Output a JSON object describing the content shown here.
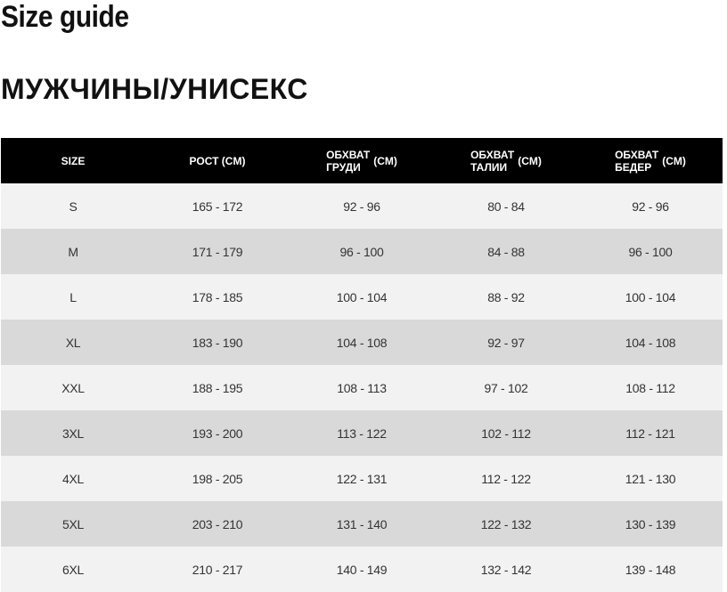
{
  "title": "Size guide",
  "section": "МУЖЧИНЫ/УНИСЕКС",
  "table": {
    "headers": [
      {
        "main": "SIZE",
        "unit": ""
      },
      {
        "main": "РОСТ",
        "unit": "(CM)"
      },
      {
        "line1": "ОБХВАТ",
        "line2": "ГРУДИ",
        "unit": "(CM)"
      },
      {
        "line1": "ОБХВАТ",
        "line2": "ТАЛИИ",
        "unit": "(CM)"
      },
      {
        "line1": "ОБХВАТ",
        "line2": "БЕДЕР",
        "unit": "(CM)"
      }
    ],
    "rows": [
      [
        "S",
        "165 - 172",
        "92 - 96",
        "80 - 84",
        "92 - 96"
      ],
      [
        "M",
        "171 - 179",
        "96 - 100",
        "84 - 88",
        "96 - 100"
      ],
      [
        "L",
        "178 - 185",
        "100 - 104",
        "88 - 92",
        "100 - 104"
      ],
      [
        "XL",
        "183 - 190",
        "104 - 108",
        "92 - 97",
        "104 - 108"
      ],
      [
        "XXL",
        "188 - 195",
        "108 - 113",
        "97 - 102",
        "108 - 112"
      ],
      [
        "3XL",
        "193 - 200",
        "113 - 122",
        "102 - 112",
        "112 - 121"
      ],
      [
        "4XL",
        "198 - 205",
        "122 - 131",
        "112 - 122",
        "121 - 130"
      ],
      [
        "5XL",
        "203 - 210",
        "131 - 140",
        "122 - 132",
        "130 - 139"
      ],
      [
        "6XL",
        "210 - 217",
        "140 - 149",
        "132 - 142",
        "139 - 148"
      ]
    ]
  }
}
